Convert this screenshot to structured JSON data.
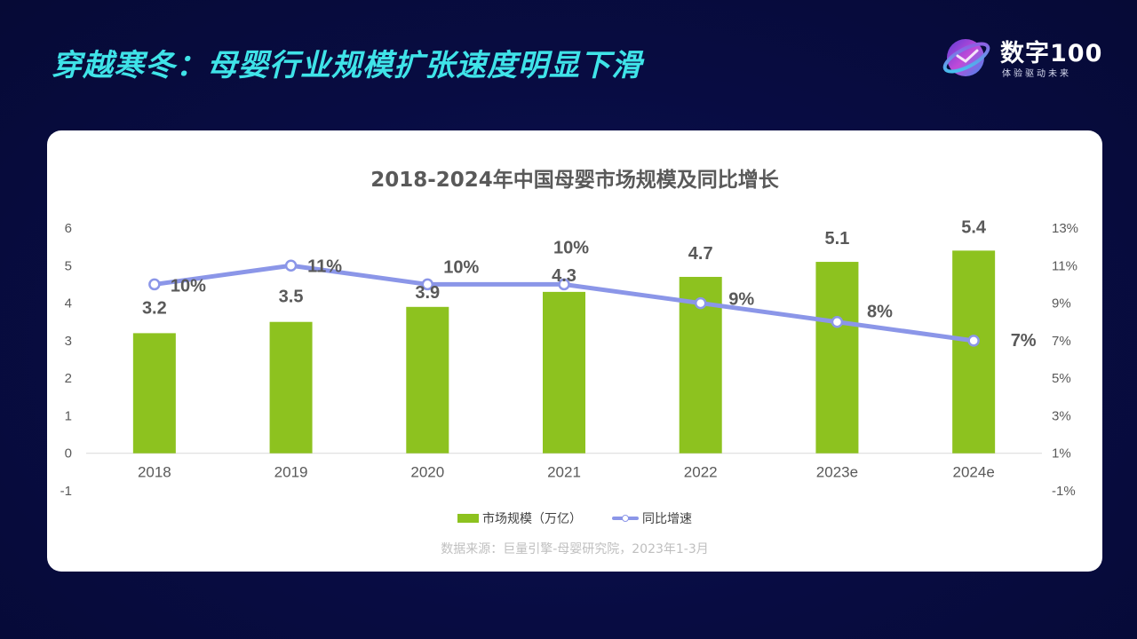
{
  "slide": {
    "title": "穿越寒冬：母婴行业规模扩张速度明显下滑"
  },
  "logo": {
    "name": "数字100",
    "tagline": "体验驱动未来"
  },
  "colors": {
    "background": "#080c42",
    "title": "#3fe3e8",
    "bar": "#8dc21f",
    "line": "#8b96e8",
    "label": "#595959"
  },
  "chart_data": {
    "type": "bar",
    "title": "2018-2024年中国母婴市场规模及同比增长",
    "categories": [
      "2018",
      "2019",
      "2020",
      "2021",
      "2022",
      "2023e",
      "2024e"
    ],
    "series": [
      {
        "name": "市场规模（万亿）",
        "type": "bar",
        "axis": "left",
        "values": [
          3.2,
          3.5,
          3.9,
          4.3,
          4.7,
          5.1,
          5.4
        ],
        "labels": [
          "3.2",
          "3.5",
          "3.9",
          "4.3",
          "4.7",
          "5.1",
          "5.4"
        ]
      },
      {
        "name": "同比增速",
        "type": "line",
        "axis": "right",
        "values": [
          10,
          11,
          10,
          10,
          9,
          8,
          7
        ],
        "labels": [
          "10%",
          "11%",
          "10%",
          "10%",
          "9%",
          "8%",
          "7%"
        ]
      }
    ],
    "y_left": {
      "range": [
        -1,
        6
      ],
      "ticks": [
        "-1",
        "0",
        "1",
        "2",
        "3",
        "4",
        "5",
        "6"
      ]
    },
    "y_right": {
      "range": [
        -1,
        13
      ],
      "ticks": [
        "-1%",
        "1%",
        "3%",
        "5%",
        "7%",
        "9%",
        "11%",
        "13%"
      ]
    },
    "grid": false,
    "legend_position": "bottom"
  },
  "legend": {
    "bar_label": "市场规模（万亿）",
    "line_label": "同比增速"
  },
  "source": "数据来源：巨量引擎-母婴研究院，2023年1-3月"
}
